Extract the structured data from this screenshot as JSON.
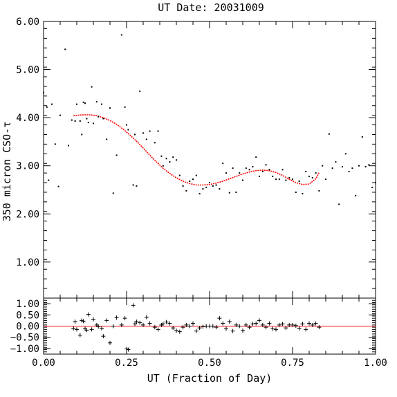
{
  "chart_data": [
    {
      "type": "scatter",
      "title": "UT Date: 20031009",
      "xlabel": "",
      "ylabel": "350 micron CSO-τ",
      "xlim": [
        0.0,
        1.0
      ],
      "ylim": [
        0.25,
        6.0
      ],
      "yticks": [
        1.0,
        2.0,
        3.0,
        4.0,
        5.0,
        6.0
      ],
      "ytick_labels": [
        "1.00",
        "2.00",
        "3.00",
        "4.00",
        "5.00",
        "6.00"
      ],
      "grid": false,
      "series": [
        {
          "type": "scatter",
          "marker": "dot",
          "color": "#000000",
          "x": [
            0.0,
            0.01,
            0.015,
            0.025,
            0.035,
            0.045,
            0.05,
            0.065,
            0.075,
            0.085,
            0.095,
            0.1,
            0.11,
            0.115,
            0.12,
            0.125,
            0.13,
            0.135,
            0.145,
            0.15,
            0.16,
            0.165,
            0.175,
            0.18,
            0.19,
            0.2,
            0.21,
            0.22,
            0.235,
            0.245,
            0.25,
            0.255,
            0.27,
            0.275,
            0.28,
            0.29,
            0.3,
            0.31,
            0.32,
            0.335,
            0.345,
            0.355,
            0.36,
            0.37,
            0.38,
            0.39,
            0.4,
            0.41,
            0.42,
            0.43,
            0.44,
            0.45,
            0.46,
            0.47,
            0.48,
            0.49,
            0.5,
            0.51,
            0.52,
            0.53,
            0.54,
            0.55,
            0.56,
            0.57,
            0.58,
            0.59,
            0.6,
            0.61,
            0.62,
            0.63,
            0.64,
            0.65,
            0.66,
            0.67,
            0.68,
            0.69,
            0.7,
            0.71,
            0.72,
            0.73,
            0.74,
            0.75,
            0.76,
            0.77,
            0.78,
            0.79,
            0.8,
            0.81,
            0.82,
            0.83,
            0.84,
            0.85,
            0.86,
            0.87,
            0.88,
            0.89,
            0.9,
            0.91,
            0.92,
            0.93,
            0.94,
            0.95,
            0.96,
            0.97,
            0.98,
            0.99,
            1.0
          ],
          "y": [
            4.52,
            4.22,
            2.7,
            4.28,
            3.45,
            2.57,
            4.05,
            5.42,
            3.42,
            3.95,
            3.93,
            4.28,
            3.93,
            3.65,
            4.32,
            4.3,
            3.98,
            3.9,
            4.64,
            3.88,
            4.33,
            4.02,
            4.28,
            3.98,
            3.55,
            4.2,
            2.43,
            3.22,
            5.72,
            4.22,
            3.85,
            3.75,
            2.6,
            3.65,
            2.58,
            4.55,
            3.68,
            3.55,
            3.72,
            3.48,
            3.72,
            3.2,
            3.0,
            3.15,
            3.08,
            3.18,
            3.12,
            2.8,
            2.58,
            2.48,
            2.68,
            2.72,
            2.8,
            2.42,
            2.52,
            2.55,
            2.65,
            2.58,
            2.6,
            2.52,
            3.05,
            2.85,
            2.44,
            2.95,
            2.45,
            2.85,
            2.7,
            2.95,
            2.92,
            2.98,
            3.18,
            2.78,
            2.88,
            3.02,
            2.92,
            2.78,
            2.72,
            2.72,
            2.92,
            2.7,
            2.75,
            2.72,
            2.45,
            2.68,
            2.42,
            2.88,
            2.78,
            2.75,
            2.85,
            2.48,
            3.0,
            2.72,
            3.66,
            2.95,
            3.08,
            2.2,
            2.98,
            3.25,
            2.88,
            2.95,
            2.38,
            3.0,
            3.6,
            2.98,
            3.02,
            2.55,
            2.65
          ]
        },
        {
          "type": "line",
          "style": "dotted",
          "color": "#ff0000",
          "x": [
            0.09,
            0.1,
            0.12,
            0.14,
            0.16,
            0.18,
            0.2,
            0.22,
            0.24,
            0.26,
            0.28,
            0.3,
            0.32,
            0.34,
            0.36,
            0.38,
            0.4,
            0.42,
            0.44,
            0.46,
            0.48,
            0.5,
            0.52,
            0.54,
            0.56,
            0.58,
            0.6,
            0.62,
            0.64,
            0.66,
            0.68,
            0.7,
            0.72,
            0.74,
            0.76,
            0.78,
            0.8,
            0.82,
            0.83
          ],
          "y": [
            4.04,
            4.05,
            4.06,
            4.06,
            4.04,
            4.0,
            3.94,
            3.86,
            3.76,
            3.64,
            3.51,
            3.37,
            3.22,
            3.08,
            2.95,
            2.84,
            2.75,
            2.68,
            2.63,
            2.6,
            2.6,
            2.61,
            2.64,
            2.68,
            2.73,
            2.78,
            2.83,
            2.87,
            2.9,
            2.91,
            2.9,
            2.86,
            2.8,
            2.72,
            2.65,
            2.61,
            2.62,
            2.73,
            2.86
          ]
        }
      ]
    },
    {
      "type": "scatter",
      "title": "",
      "xlabel": "UT (Fraction of Day)",
      "ylabel": "",
      "xlim": [
        0.0,
        1.0
      ],
      "ylim": [
        -1.25,
        1.25
      ],
      "xticks": [
        0.0,
        0.25,
        0.5,
        0.75,
        1.0
      ],
      "xtick_labels": [
        "0.00",
        "0.25",
        "0.50",
        "0.75",
        "1.00"
      ],
      "yticks": [
        -1.0,
        -0.5,
        0.0,
        0.5,
        1.0
      ],
      "ytick_labels": [
        "−1.00",
        "−0.50",
        "0.00",
        "0.50",
        "1.00"
      ],
      "grid": false,
      "series": [
        {
          "type": "scatter",
          "marker": "plus",
          "color": "#000000",
          "x": [
            0.09,
            0.095,
            0.1,
            0.11,
            0.115,
            0.12,
            0.125,
            0.13,
            0.135,
            0.145,
            0.15,
            0.16,
            0.165,
            0.175,
            0.18,
            0.19,
            0.2,
            0.21,
            0.22,
            0.235,
            0.245,
            0.25,
            0.255,
            0.27,
            0.275,
            0.28,
            0.29,
            0.3,
            0.31,
            0.32,
            0.335,
            0.345,
            0.355,
            0.36,
            0.37,
            0.38,
            0.39,
            0.4,
            0.41,
            0.42,
            0.43,
            0.44,
            0.45,
            0.46,
            0.47,
            0.48,
            0.49,
            0.5,
            0.51,
            0.52,
            0.53,
            0.54,
            0.55,
            0.56,
            0.57,
            0.58,
            0.59,
            0.6,
            0.61,
            0.62,
            0.63,
            0.64,
            0.65,
            0.66,
            0.67,
            0.68,
            0.69,
            0.7,
            0.71,
            0.72,
            0.73,
            0.74,
            0.75,
            0.76,
            0.77,
            0.78,
            0.79,
            0.8,
            0.81,
            0.82,
            0.83
          ],
          "y": [
            -0.1,
            0.2,
            -0.15,
            -0.4,
            0.25,
            0.22,
            -0.12,
            -0.18,
            0.52,
            -0.15,
            0.3,
            0.05,
            -0.02,
            -0.1,
            -0.45,
            0.25,
            -0.75,
            0.0,
            0.38,
            0.05,
            0.35,
            -1.02,
            -1.05,
            0.93,
            0.1,
            0.2,
            0.15,
            0.05,
            0.4,
            0.12,
            -0.05,
            -0.15,
            0.05,
            0.1,
            0.18,
            0.12,
            -0.08,
            -0.2,
            -0.25,
            -0.05,
            0.05,
            0.0,
            0.12,
            -0.22,
            -0.08,
            -0.02,
            0.0,
            0.0,
            0.0,
            -0.05,
            0.35,
            0.12,
            -0.12,
            0.2,
            -0.22,
            0.05,
            0.0,
            -0.2,
            0.05,
            -0.05,
            0.1,
            0.12,
            0.25,
            0.05,
            -0.05,
            0.12,
            -0.12,
            -0.15,
            0.05,
            0.1,
            -0.08,
            0.05,
            0.05,
            0.02,
            -0.1,
            0.1,
            -0.15,
            0.12,
            0.05,
            0.12,
            -0.05
          ]
        },
        {
          "type": "line",
          "style": "solid",
          "color": "#ff0000",
          "x": [
            0.0,
            1.0
          ],
          "y": [
            0.0,
            0.0
          ]
        }
      ]
    }
  ]
}
